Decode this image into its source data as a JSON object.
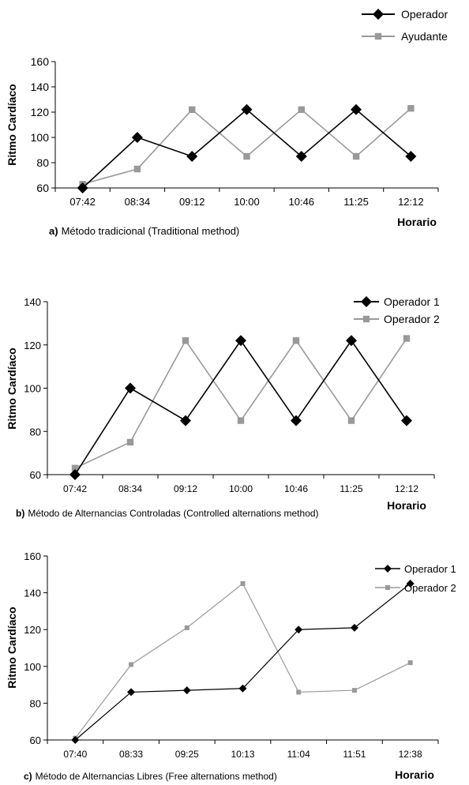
{
  "chart_data": [
    {
      "type": "line",
      "title": "",
      "caption": {
        "prefix": "a)",
        "text": "Método tradicional (Traditional method)"
      },
      "xlabel": "Horario",
      "ylabel": "Ritmo Cardíaco",
      "categories": [
        "07:42",
        "08:34",
        "09:12",
        "10:00",
        "10:46",
        "11:25",
        "12:12"
      ],
      "yticks": [
        60,
        80,
        100,
        120,
        140,
        160
      ],
      "ylim": [
        60,
        160
      ],
      "grid": false,
      "legend_position": "top-right",
      "series": [
        {
          "name": "Operador",
          "color": "#000000",
          "marker": "diamond",
          "values": [
            60,
            100,
            85,
            122,
            85,
            122,
            85
          ]
        },
        {
          "name": "Ayudante",
          "color": "#999999",
          "marker": "square",
          "values": [
            63,
            75,
            122,
            85,
            122,
            85,
            123
          ]
        }
      ]
    },
    {
      "type": "line",
      "title": "",
      "caption": {
        "prefix": "b)",
        "text": "Método de Alternancias Controladas (Controlled alternations method)"
      },
      "xlabel": "Horario",
      "ylabel": "Ritmo Cardíaco",
      "categories": [
        "07:42",
        "08:34",
        "09:12",
        "10:00",
        "10:46",
        "11:25",
        "12:12"
      ],
      "yticks": [
        60,
        80,
        100,
        120,
        140
      ],
      "ylim": [
        60,
        140
      ],
      "grid": false,
      "legend_position": "top-right",
      "series": [
        {
          "name": "Operador 1",
          "color": "#000000",
          "marker": "diamond",
          "values": [
            60,
            100,
            85,
            122,
            85,
            122,
            85
          ]
        },
        {
          "name": "Operador 2",
          "color": "#999999",
          "marker": "square",
          "values": [
            63,
            75,
            122,
            85,
            122,
            85,
            123
          ]
        }
      ]
    },
    {
      "type": "line",
      "title": "",
      "caption": {
        "prefix": "c)",
        "text": "Método de Alternancias Libres (Free alternations method)"
      },
      "xlabel": "Horario",
      "ylabel": "Ritmo Cardíaco",
      "categories": [
        "07:40",
        "08:33",
        "09:25",
        "10:13",
        "11:04",
        "11:51",
        "12:38"
      ],
      "yticks": [
        60,
        80,
        100,
        120,
        140,
        160
      ],
      "ylim": [
        60,
        160
      ],
      "grid": false,
      "legend_position": "top-right",
      "series": [
        {
          "name": "Operador 1",
          "color": "#000000",
          "marker": "diamond",
          "values": [
            60,
            86,
            87,
            88,
            120,
            121,
            145
          ]
        },
        {
          "name": "Operador 2",
          "color": "#999999",
          "marker": "square",
          "values": [
            61,
            101,
            121,
            145,
            86,
            87,
            102
          ]
        }
      ]
    }
  ]
}
